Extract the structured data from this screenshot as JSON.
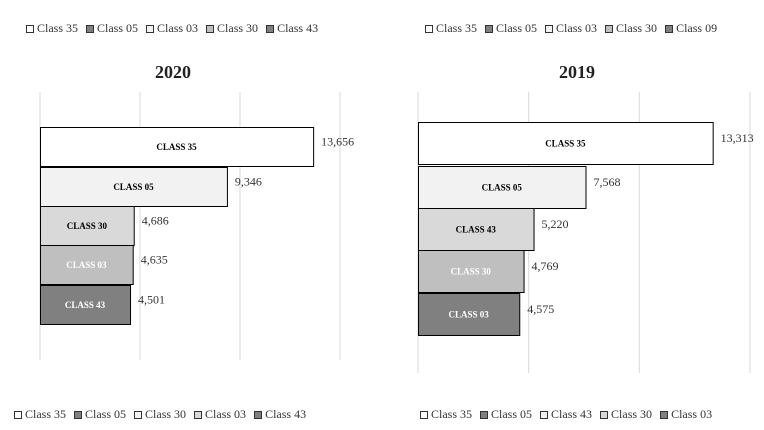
{
  "chart_data": [
    {
      "type": "bar",
      "orientation": "horizontal",
      "title": "2020",
      "categories": [
        "CLASS 35",
        "CLASS 05",
        "CLASS 30",
        "CLASS 03",
        "CLASS 43"
      ],
      "values": [
        13656,
        9346,
        4686,
        4635,
        4501
      ],
      "value_labels": [
        "13,656",
        "9,346",
        "4,686",
        "4,635",
        "4,501"
      ],
      "bar_colors": [
        "#ffffff",
        "#f2f2f2",
        "#d9d9d9",
        "#bfbfbf",
        "#808080"
      ],
      "label_colors": [
        "#000000",
        "#000000",
        "#000000",
        "#ffffff",
        "#ffffff"
      ],
      "xlim": [
        0,
        15000
      ],
      "grid": true,
      "legend_top": [
        {
          "label": "Class 35",
          "color": "#ffffff"
        },
        {
          "label": "Class 05",
          "color": "#808080"
        },
        {
          "label": "Class 03",
          "color": "#f2f2f2"
        },
        {
          "label": "Class 30",
          "color": "#bfbfbf"
        },
        {
          "label": "Class 43",
          "color": "#808080"
        }
      ],
      "legend_bottom": [
        {
          "label": "Class 35",
          "color": "#ffffff"
        },
        {
          "label": "Class 05",
          "color": "#808080"
        },
        {
          "label": "Class 30",
          "color": "#f2f2f2"
        },
        {
          "label": "Class 03",
          "color": "#d9d9d9"
        },
        {
          "label": "Class 43",
          "color": "#808080"
        }
      ]
    },
    {
      "type": "bar",
      "orientation": "horizontal",
      "title": "2019",
      "categories": [
        "CLASS 35",
        "CLASS 05",
        "CLASS 43",
        "CLASS 30",
        "CLASS 03"
      ],
      "values": [
        13313,
        7568,
        5220,
        4769,
        4575
      ],
      "value_labels": [
        "13,313",
        "7,568",
        "5,220",
        "4,769",
        "4,575"
      ],
      "bar_colors": [
        "#ffffff",
        "#f2f2f2",
        "#d9d9d9",
        "#bfbfbf",
        "#808080"
      ],
      "label_colors": [
        "#000000",
        "#000000",
        "#000000",
        "#ffffff",
        "#ffffff"
      ],
      "xlim": [
        0,
        15000
      ],
      "grid": true,
      "legend_top": [
        {
          "label": "Class 35",
          "color": "#ffffff"
        },
        {
          "label": "Class 05",
          "color": "#808080"
        },
        {
          "label": "Class 03",
          "color": "#f2f2f2"
        },
        {
          "label": "Class 30",
          "color": "#bfbfbf"
        },
        {
          "label": "Class 09",
          "color": "#808080"
        }
      ],
      "legend_bottom": [
        {
          "label": "Class 35",
          "color": "#ffffff"
        },
        {
          "label": "Class 05",
          "color": "#808080"
        },
        {
          "label": "Class 43",
          "color": "#f2f2f2"
        },
        {
          "label": "Class 30",
          "color": "#d9d9d9"
        },
        {
          "label": "Class 03",
          "color": "#808080"
        }
      ]
    }
  ]
}
